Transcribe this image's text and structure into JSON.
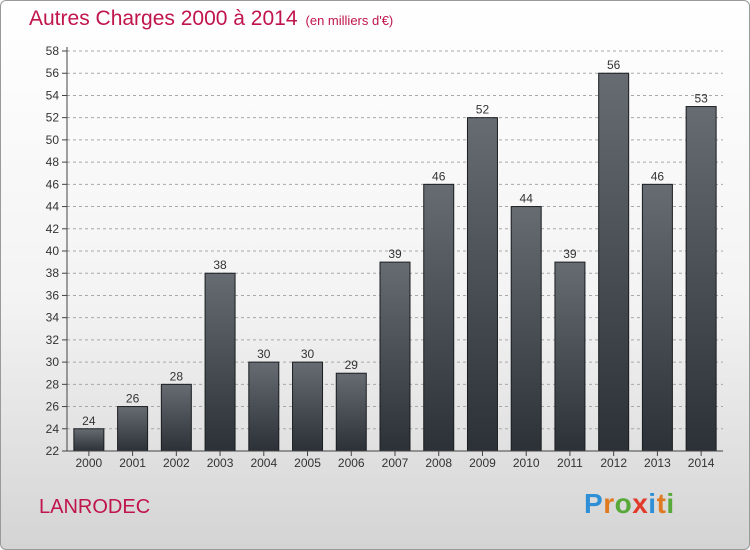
{
  "title": "Autres Charges 2000 à 2014",
  "subtitle": "(en milliers d'€)",
  "place": "LANRODEC",
  "logo": {
    "text": "Proxiti",
    "colors": [
      "#2f8fd6",
      "#e07a22",
      "#58a83a",
      "#e23a2a",
      "#2f8fd6",
      "#e07a22",
      "#58a83a"
    ]
  },
  "colors": {
    "accent": "#c0144c",
    "bar_top": "#666c72",
    "bar_bottom": "#2c3137",
    "grid": "#a8a8a8",
    "axis": "#444444",
    "text": "#333333"
  },
  "chart_data": {
    "type": "bar",
    "title": "Autres Charges 2000 à 2014",
    "subtitle": "(en milliers d'€)",
    "xlabel": "",
    "ylabel": "",
    "categories": [
      "2000",
      "2001",
      "2002",
      "2003",
      "2004",
      "2005",
      "2006",
      "2007",
      "2008",
      "2009",
      "2010",
      "2011",
      "2012",
      "2013",
      "2014"
    ],
    "values": [
      24,
      26,
      28,
      38,
      30,
      30,
      29,
      39,
      46,
      52,
      44,
      39,
      56,
      46,
      53
    ],
    "ylim": [
      22,
      58
    ],
    "yticks": [
      22,
      24,
      26,
      28,
      30,
      32,
      34,
      36,
      38,
      40,
      42,
      44,
      46,
      48,
      50,
      52,
      54,
      56,
      58
    ],
    "grid": true,
    "data_labels": true,
    "legend": "none"
  }
}
